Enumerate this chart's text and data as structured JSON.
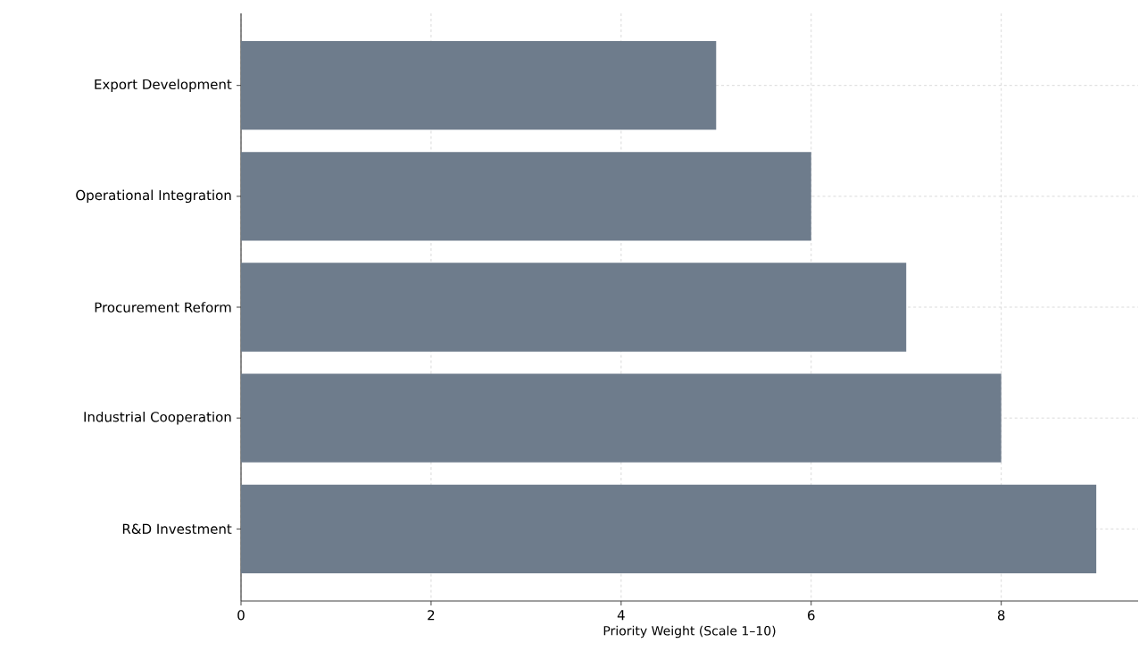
{
  "chart_data": {
    "type": "bar",
    "orientation": "horizontal",
    "xlabel": "Priority Weight (Scale 1–10)",
    "categories": [
      "Export Development",
      "Operational Integration",
      "Procurement Reform",
      "Industrial Cooperation",
      "R&D Investment"
    ],
    "values": [
      5,
      6,
      7,
      8,
      9
    ],
    "color": "#6e7c8c",
    "xlim": [
      0,
      9.44
    ],
    "xticks": [
      0,
      2,
      4,
      6,
      8
    ],
    "grid": true
  }
}
